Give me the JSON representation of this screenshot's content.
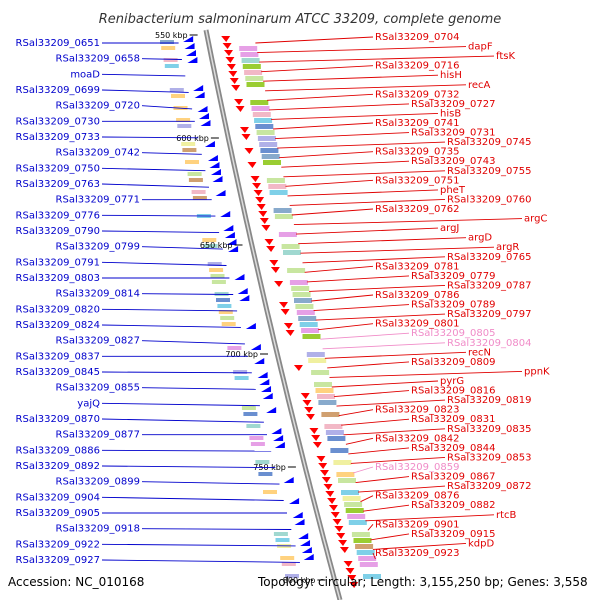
{
  "title": "Renibacterium salmoninarum ATCC 33209, complete genome",
  "footer": {
    "accession": "Accession: NC_010168",
    "topology": "Topology: circular; Length: 3,155,250 bp; Genes: 3,558"
  },
  "colors": {
    "left_label": "#0000cc",
    "right_label": "#e00000",
    "right_label_faded": "#f08cc8",
    "forward_arrow": "#0000ff",
    "reverse_arrow": "#ff0000",
    "backbone": "#888888"
  },
  "kbp_markers": [
    {
      "label": "550 kbp"
    },
    {
      "label": "600 kbp"
    },
    {
      "label": "650 kbp"
    },
    {
      "label": "700 kbp"
    },
    {
      "label": "750 kbp"
    },
    {
      "label": "800 kbp"
    }
  ],
  "left_labels": [
    "RSal33209_0651",
    "RSal33209_0658",
    "moaD",
    "RSal33209_0699",
    "RSal33209_0720",
    "RSal33209_0730",
    "RSal33209_0733",
    "RSal33209_0742",
    "RSal33209_0750",
    "RSal33209_0763",
    "RSal33209_0771",
    "RSal33209_0776",
    "RSal33209_0790",
    "RSal33209_0799",
    "RSal33209_0791",
    "RSal33209_0803",
    "RSal33209_0814",
    "RSal33209_0820",
    "RSal33209_0824",
    "RSal33209_0827",
    "RSal33209_0837",
    "RSal33209_0845",
    "RSal33209_0855",
    "yajQ",
    "RSal33209_0870",
    "RSal33209_0877",
    "RSal33209_0886",
    "RSal33209_0892",
    "RSal33209_0899",
    "RSal33209_0904",
    "RSal33209_0905",
    "RSal33209_0918",
    "RSal33209_0922",
    "RSal33209_0927"
  ],
  "right_labels": [
    "RSal33209_0704",
    "dapF",
    "ftsK",
    "RSal33209_0716",
    "hisH",
    "recA",
    "RSal33209_0732",
    "RSal33209_0727",
    "hisB",
    "RSal33209_0741",
    "RSal33209_0731",
    "RSal33209_0745",
    "RSal33209_0735",
    "RSal33209_0743",
    "RSal33209_0755",
    "RSal33209_0751",
    "pheT",
    "RSal33209_0760",
    "RSal33209_0762",
    "argC",
    "argJ",
    "argD",
    "argR",
    "RSal33209_0765",
    "RSal33209_0781",
    "RSal33209_0779",
    "RSal33209_0787",
    "RSal33209_0786",
    "RSal33209_0789",
    "RSal33209_0797",
    "RSal33209_0801",
    "RSal33209_0805",
    "RSal33209_0804",
    "recN",
    "RSal33209_0809",
    "ppnK",
    "pyrG",
    "RSal33209_0816",
    "RSal33209_0819",
    "RSal33209_0823",
    "RSal33209_0831",
    "RSal33209_0835",
    "RSal33209_0842",
    "RSal33209_0844",
    "RSal33209_0853",
    "RSal33209_0859",
    "RSal33209_0867",
    "RSal33209_0872",
    "RSal33209_0876",
    "RSal33209_0882",
    "rtcB",
    "RSal33209_0901",
    "RSal33209_0915",
    "kdpD",
    "RSal33209_0923"
  ]
}
